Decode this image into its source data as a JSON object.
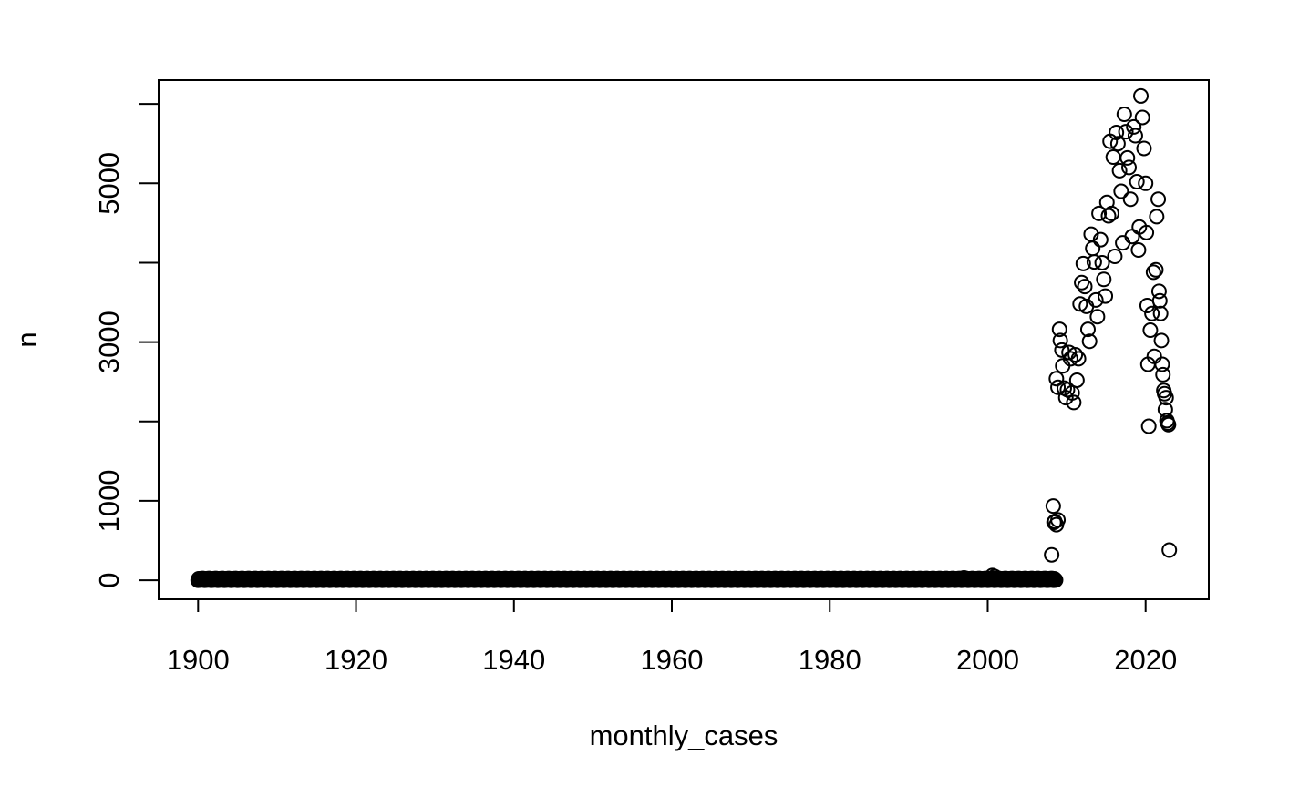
{
  "chart_data": {
    "type": "scatter",
    "xlabel": "monthly_cases",
    "ylabel": "n",
    "xlim": [
      1895,
      2028
    ],
    "ylim": [
      -240,
      6300
    ],
    "x_ticks": [
      1900,
      1920,
      1940,
      1960,
      1980,
      2000,
      2020
    ],
    "y_ticks": [
      0,
      1000,
      2000,
      3000,
      4000,
      5000,
      6000
    ],
    "y_tick_labels": [
      "0",
      "1000",
      "",
      "3000",
      "",
      "5000",
      ""
    ],
    "marker": "open-circle",
    "grid": false,
    "legend": "none",
    "baseline_segment": {
      "x_start": 1900,
      "x_end": 2008.6,
      "y_min": 0,
      "y_max": 25,
      "density_per_year": 12
    },
    "points": [
      {
        "x": 2000.6,
        "y": 60
      },
      {
        "x": 2000.9,
        "y": 45
      },
      {
        "x": 1997.0,
        "y": 30
      },
      {
        "x": 1991.0,
        "y": 15
      },
      {
        "x": 2008.3,
        "y": 935
      },
      {
        "x": 2008.5,
        "y": 740
      },
      {
        "x": 2008.7,
        "y": 700
      },
      {
        "x": 2008.9,
        "y": 760
      },
      {
        "x": 2008.4,
        "y": 730
      },
      {
        "x": 2008.1,
        "y": 320
      },
      {
        "x": 2008.7,
        "y": 2540
      },
      {
        "x": 2008.9,
        "y": 2430
      },
      {
        "x": 2009.1,
        "y": 3160
      },
      {
        "x": 2009.2,
        "y": 3020
      },
      {
        "x": 2009.4,
        "y": 2900
      },
      {
        "x": 2009.5,
        "y": 2700
      },
      {
        "x": 2009.7,
        "y": 2420
      },
      {
        "x": 2009.9,
        "y": 2300
      },
      {
        "x": 2010.1,
        "y": 2400
      },
      {
        "x": 2010.3,
        "y": 2870
      },
      {
        "x": 2010.5,
        "y": 2790
      },
      {
        "x": 2010.7,
        "y": 2360
      },
      {
        "x": 2010.9,
        "y": 2240
      },
      {
        "x": 2011.1,
        "y": 2840
      },
      {
        "x": 2011.3,
        "y": 2520
      },
      {
        "x": 2011.5,
        "y": 2790
      },
      {
        "x": 2011.7,
        "y": 3480
      },
      {
        "x": 2011.9,
        "y": 3750
      },
      {
        "x": 2012.1,
        "y": 3990
      },
      {
        "x": 2012.3,
        "y": 3700
      },
      {
        "x": 2012.5,
        "y": 3450
      },
      {
        "x": 2012.7,
        "y": 3160
      },
      {
        "x": 2012.9,
        "y": 3010
      },
      {
        "x": 2013.1,
        "y": 4360
      },
      {
        "x": 2013.3,
        "y": 4180
      },
      {
        "x": 2013.5,
        "y": 4010
      },
      {
        "x": 2013.7,
        "y": 3530
      },
      {
        "x": 2013.9,
        "y": 3320
      },
      {
        "x": 2014.1,
        "y": 4620
      },
      {
        "x": 2014.3,
        "y": 4290
      },
      {
        "x": 2014.5,
        "y": 4000
      },
      {
        "x": 2014.7,
        "y": 3790
      },
      {
        "x": 2014.9,
        "y": 3580
      },
      {
        "x": 2015.1,
        "y": 4760
      },
      {
        "x": 2015.3,
        "y": 4590
      },
      {
        "x": 2015.5,
        "y": 5530
      },
      {
        "x": 2015.7,
        "y": 4620
      },
      {
        "x": 2015.9,
        "y": 5330
      },
      {
        "x": 2016.1,
        "y": 4080
      },
      {
        "x": 2016.3,
        "y": 5640
      },
      {
        "x": 2016.5,
        "y": 5500
      },
      {
        "x": 2016.7,
        "y": 5160
      },
      {
        "x": 2016.9,
        "y": 4900
      },
      {
        "x": 2017.1,
        "y": 4250
      },
      {
        "x": 2017.3,
        "y": 5870
      },
      {
        "x": 2017.5,
        "y": 5650
      },
      {
        "x": 2017.7,
        "y": 5320
      },
      {
        "x": 2017.9,
        "y": 5200
      },
      {
        "x": 2018.1,
        "y": 4800
      },
      {
        "x": 2018.3,
        "y": 4330
      },
      {
        "x": 2018.5,
        "y": 5710
      },
      {
        "x": 2018.7,
        "y": 5600
      },
      {
        "x": 2018.9,
        "y": 5020
      },
      {
        "x": 2019.1,
        "y": 4160
      },
      {
        "x": 2019.2,
        "y": 4450
      },
      {
        "x": 2019.4,
        "y": 6100
      },
      {
        "x": 2019.6,
        "y": 5830
      },
      {
        "x": 2019.8,
        "y": 5440
      },
      {
        "x": 2020.0,
        "y": 5000
      },
      {
        "x": 2020.1,
        "y": 4380
      },
      {
        "x": 2020.2,
        "y": 3460
      },
      {
        "x": 2020.3,
        "y": 2720
      },
      {
        "x": 2020.4,
        "y": 1940
      },
      {
        "x": 2020.6,
        "y": 3150
      },
      {
        "x": 2020.8,
        "y": 3360
      },
      {
        "x": 2021.0,
        "y": 3880
      },
      {
        "x": 2021.1,
        "y": 2820
      },
      {
        "x": 2021.3,
        "y": 3910
      },
      {
        "x": 2021.4,
        "y": 4580
      },
      {
        "x": 2021.6,
        "y": 4800
      },
      {
        "x": 2021.7,
        "y": 3640
      },
      {
        "x": 2021.8,
        "y": 3520
      },
      {
        "x": 2021.9,
        "y": 3360
      },
      {
        "x": 2022.0,
        "y": 3020
      },
      {
        "x": 2022.1,
        "y": 2720
      },
      {
        "x": 2022.2,
        "y": 2590
      },
      {
        "x": 2022.3,
        "y": 2390
      },
      {
        "x": 2022.4,
        "y": 2350
      },
      {
        "x": 2022.5,
        "y": 2150
      },
      {
        "x": 2022.6,
        "y": 2300
      },
      {
        "x": 2022.7,
        "y": 2010
      },
      {
        "x": 2022.8,
        "y": 1980
      },
      {
        "x": 2022.9,
        "y": 1960
      },
      {
        "x": 2023.0,
        "y": 380
      }
    ]
  }
}
